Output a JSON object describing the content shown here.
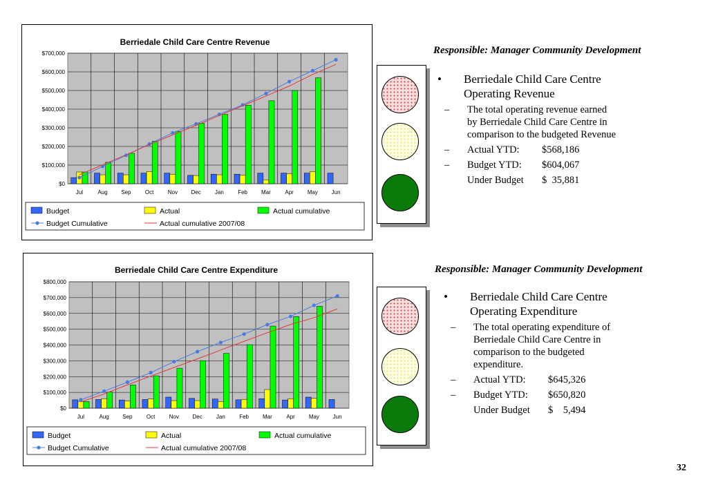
{
  "chart_data": [
    {
      "type": "bar",
      "title": "Berriedale Child Care Centre Revenue",
      "categories": [
        "Jul",
        "Aug",
        "Sep",
        "Oct",
        "Nov",
        "Dec",
        "Jan",
        "Feb",
        "Mar",
        "Apr",
        "May",
        "Jun"
      ],
      "ylim": [
        0,
        700000
      ],
      "yticks": [
        0,
        100000,
        200000,
        300000,
        400000,
        500000,
        600000,
        700000
      ],
      "ytick_labels": [
        "$0",
        "$100,000",
        "$200,000",
        "$300,000",
        "$400,000",
        "$500,000",
        "$600,000",
        "$700,000"
      ],
      "grid": true,
      "legend_position": "bottom",
      "series": [
        {
          "name": "Budget",
          "kind": "bar",
          "color": "#3366ff",
          "values": [
            33000,
            57000,
            57000,
            57000,
            57000,
            45000,
            51000,
            51000,
            57000,
            57000,
            57000,
            57000
          ]
        },
        {
          "name": "Actual",
          "kind": "bar",
          "color": "#ffff00",
          "values": [
            63000,
            48000,
            48000,
            65000,
            51000,
            44000,
            48000,
            45000,
            21000,
            54000,
            65000,
            null
          ]
        },
        {
          "name": "Actual cumulative",
          "kind": "bar",
          "color": "#00ff00",
          "values": [
            63000,
            115000,
            163000,
            228000,
            280000,
            324000,
            372000,
            421000,
            445000,
            500000,
            568000,
            null
          ]
        },
        {
          "name": "Budget Cumulative",
          "kind": "line-marker",
          "color": "#4a7adf",
          "values": [
            33000,
            93000,
            152000,
            213000,
            273000,
            321000,
            372000,
            423000,
            484000,
            548000,
            606000,
            665000
          ]
        },
        {
          "name": "Actual cumulative 2007/08",
          "kind": "line",
          "color": "#e03a3a",
          "values": [
            48000,
            102000,
            155000,
            210000,
            262000,
            313000,
            366000,
            418000,
            470000,
            524000,
            586000,
            640000
          ]
        }
      ]
    },
    {
      "type": "bar",
      "title": "Berriedale Child Care Centre Expenditure",
      "categories": [
        "Jul",
        "Aug",
        "Sep",
        "Oct",
        "Nov",
        "Dec",
        "Jan",
        "Feb",
        "Mar",
        "Apr",
        "May",
        "Jun"
      ],
      "ylim": [
        0,
        800000
      ],
      "yticks": [
        0,
        100000,
        200000,
        300000,
        400000,
        500000,
        600000,
        700000,
        800000
      ],
      "ytick_labels": [
        "$0",
        "$100,000",
        "$200,000",
        "$300,000",
        "$400,000",
        "$500,000",
        "$600,000",
        "$700,000",
        "$800,000"
      ],
      "grid": true,
      "legend_position": "bottom",
      "series": [
        {
          "name": "Budget",
          "kind": "bar",
          "color": "#3366ff",
          "values": [
            53000,
            55000,
            52000,
            55000,
            70000,
            62000,
            58000,
            53000,
            60000,
            52000,
            70000,
            55000
          ]
        },
        {
          "name": "Actual",
          "kind": "bar",
          "color": "#ffff00",
          "values": [
            42000,
            60000,
            45000,
            58000,
            48000,
            48000,
            42000,
            55000,
            118000,
            60000,
            62000,
            null
          ]
        },
        {
          "name": "Actual cumulative",
          "kind": "bar",
          "color": "#00ff00",
          "values": [
            42000,
            102000,
            147000,
            205000,
            253000,
            301000,
            347000,
            402000,
            520000,
            580000,
            645000,
            null
          ]
        },
        {
          "name": "Budget Cumulative",
          "kind": "line-marker",
          "color": "#4a7adf",
          "values": [
            53000,
            108000,
            165000,
            225000,
            295000,
            358000,
            416000,
            469000,
            529000,
            581000,
            651000,
            710000
          ]
        },
        {
          "name": "Actual cumulative 2007/08",
          "kind": "line",
          "color": "#e03a3a",
          "values": [
            40000,
            90000,
            148000,
            203000,
            258000,
            312000,
            368000,
            423000,
            478000,
            530000,
            573000,
            628000
          ]
        }
      ]
    }
  ],
  "panels": [
    {
      "responsible": "Responsible: Manager Community Development",
      "heading_line1": "Berriedale Child Care Centre",
      "heading_line2": "Operating Revenue",
      "desc_lines": [
        "The total operating revenue earned",
        "by Berriedale Child Care Centre in",
        "comparison to the budgeted Revenue"
      ],
      "actual_label": "Actual YTD:",
      "actual_value": "$568,186",
      "budget_label": "Budget YTD:",
      "budget_value": "$604,067",
      "variance_label": "Under Budget",
      "variance_value": "$  35,881"
    },
    {
      "responsible": "Responsible: Manager Community Development",
      "heading_line1": "Berriedale Child Care Centre",
      "heading_line2": "Operating Expenditure",
      "desc_lines": [
        "The total operating expenditure of",
        "Berriedale Child Care Centre in",
        "comparison to the budgeted",
        "expenditure."
      ],
      "actual_label": "Actual YTD:",
      "actual_value": "$645,326",
      "budget_label": "Budget YTD:",
      "budget_value": "$650,820",
      "variance_label": "Under Budget",
      "variance_value": "$    5,494"
    }
  ],
  "bullet_glyph": "•",
  "dash_glyph": "–",
  "traffic_light_status": [
    "green",
    "green"
  ],
  "page_number": "32"
}
